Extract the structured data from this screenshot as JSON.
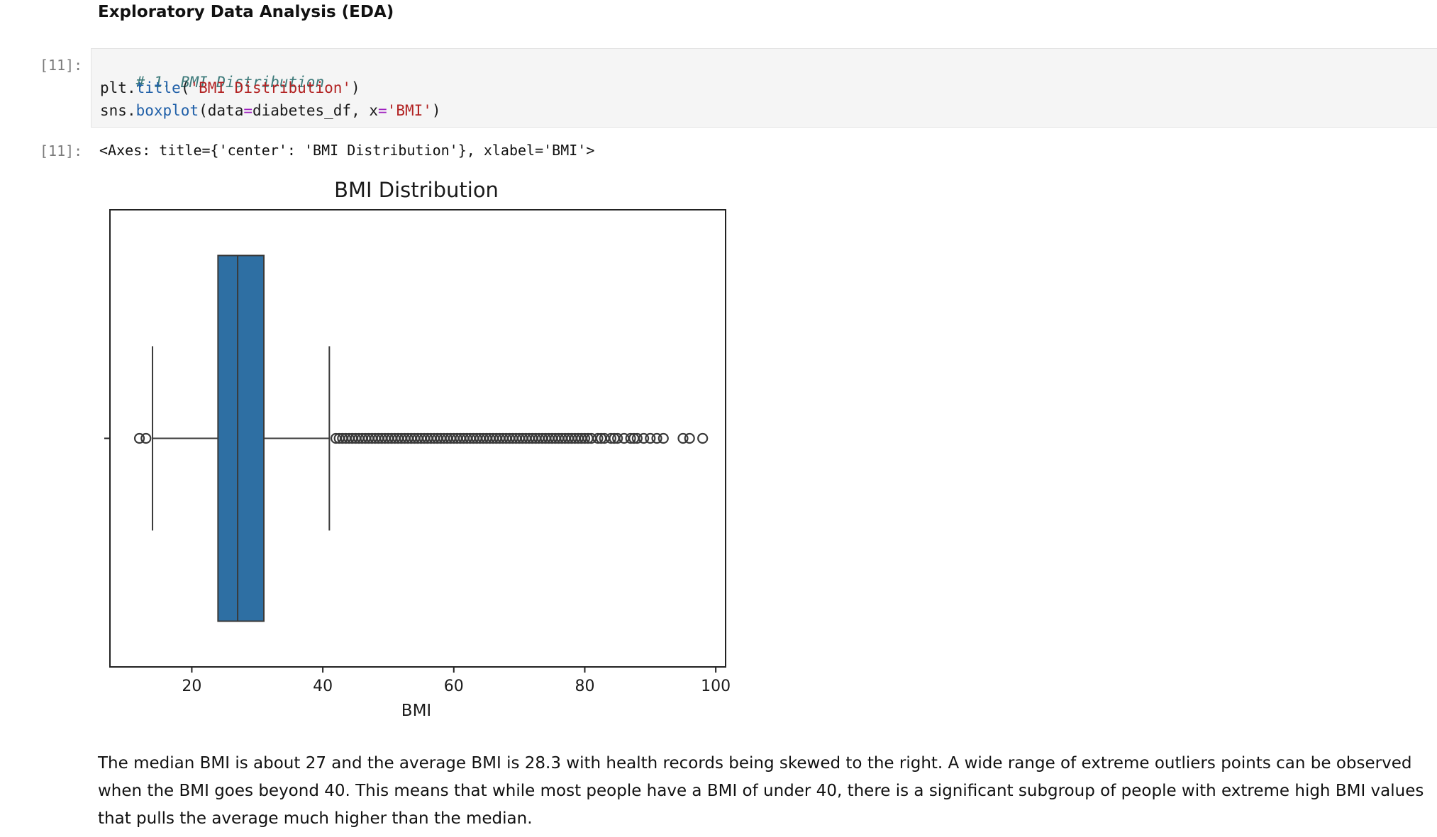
{
  "markdown_heading": "Exploratory Data Analysis (EDA)",
  "cells": [
    {
      "prompt": "[11]:"
    },
    {
      "prompt": "[11]:"
    }
  ],
  "code": {
    "line1": "# 1. BMI Distribution",
    "line2": {
      "obj": "plt",
      "dot": ".",
      "fn": "title",
      "open": "(",
      "str": "'BMI Distribution'",
      "close": ")"
    },
    "line3": {
      "obj": "sns",
      "dot": ".",
      "fn": "boxplot",
      "open": "(",
      "arg1": "data",
      "eq1": "=",
      "val1": "diabetes_df",
      "sep": ", ",
      "arg2": "x",
      "eq2": "=",
      "val2": "'BMI'",
      "close": ")"
    }
  },
  "output_repr": "<Axes: title={'center': 'BMI Distribution'}, xlabel='BMI'>",
  "chart_data": {
    "type": "boxplot",
    "title": "BMI Distribution",
    "xlabel": "BMI",
    "ylabel": "",
    "xlim": [
      7.5,
      101.5
    ],
    "xticks": [
      20,
      40,
      60,
      80,
      100
    ],
    "box": {
      "q1": 24,
      "median": 27,
      "q3": 31,
      "whisker_low": 14,
      "whisker_high": 41
    },
    "outliers": [
      12,
      13,
      42,
      42.5,
      43,
      43.5,
      44,
      44.5,
      45,
      45.5,
      46,
      46.5,
      47,
      47.5,
      48,
      48.5,
      49,
      49.5,
      50,
      50.5,
      51,
      51.5,
      52,
      52.5,
      53,
      53.5,
      54,
      54.5,
      55,
      55.5,
      56,
      56.5,
      57,
      57.5,
      58,
      58.5,
      59,
      59.5,
      60,
      60.5,
      61,
      61.5,
      62,
      62.5,
      63,
      63.5,
      64,
      64.5,
      65,
      65.5,
      66,
      66.5,
      67,
      67.5,
      68,
      68.5,
      69,
      69.5,
      70,
      70.5,
      71,
      71.5,
      72,
      72.5,
      73,
      73.5,
      74,
      74.5,
      75,
      75.5,
      76,
      76.5,
      77,
      77.5,
      78,
      78.5,
      79,
      79.5,
      80,
      80.5,
      81,
      82,
      82.5,
      83,
      84,
      84.5,
      85,
      86,
      87,
      87.5,
      88,
      89,
      90,
      91,
      92,
      95,
      96,
      98
    ],
    "color": "#2e6fa3",
    "grid": false
  },
  "description": "The median BMI is about 27 and the average BMI is 28.3 with health records being skewed to the right. A wide range of extreme outliers points can be observed when the BMI goes beyond 40. This means that while most people have a BMI of under 40, there is a significant subgroup of people with extreme high BMI values that pulls the average much higher than the median."
}
